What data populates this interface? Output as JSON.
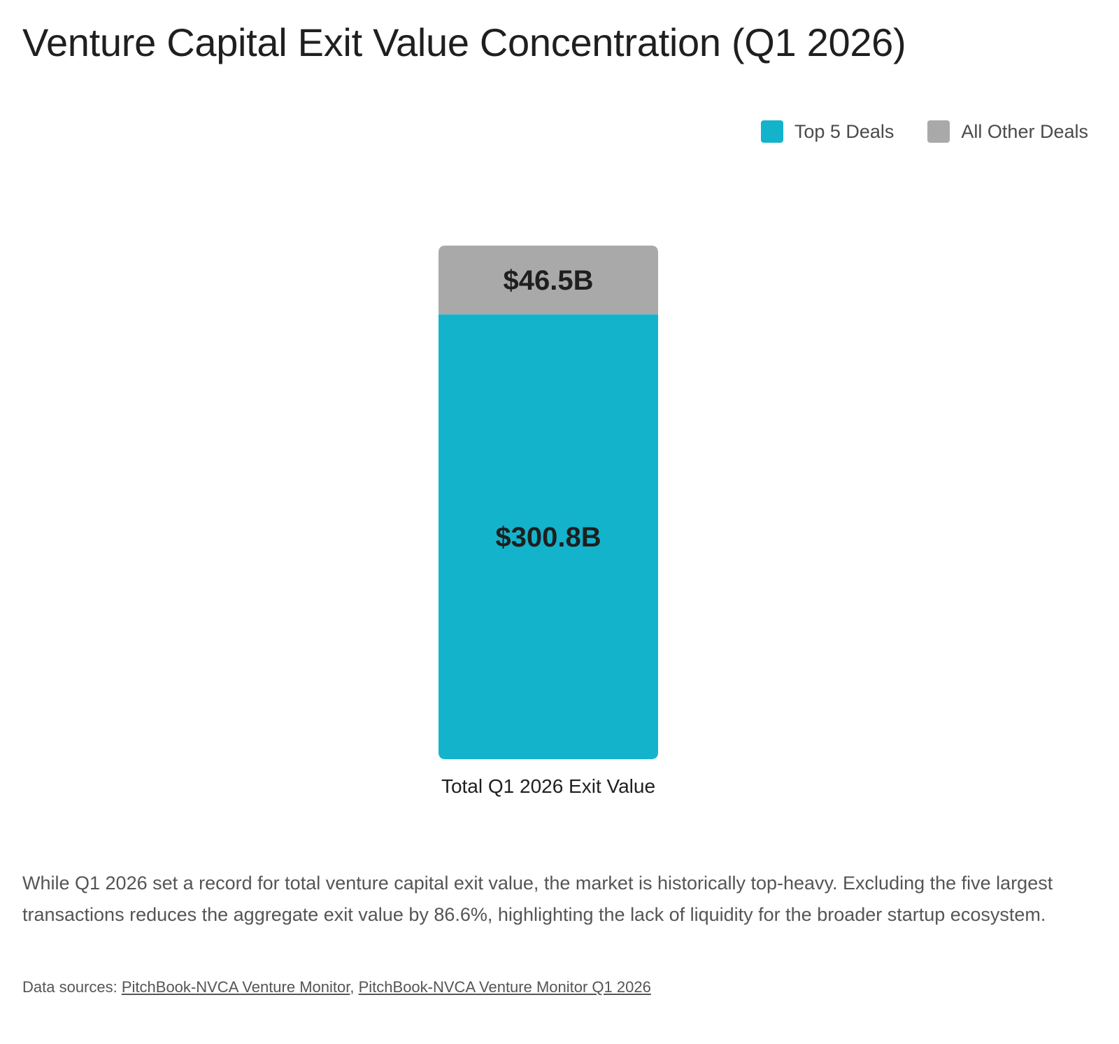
{
  "title": "Venture Capital Exit Value Concentration (Q1 2026)",
  "legend": [
    {
      "label": "Top 5 Deals",
      "color": "#14B3CC"
    },
    {
      "label": "All Other Deals",
      "color": "#A9A9A9"
    }
  ],
  "chart_data": {
    "type": "bar",
    "stacked": true,
    "categories": [
      "Total Q1 2026 Exit Value"
    ],
    "series": [
      {
        "name": "Top 5 Deals",
        "values": [
          300.8
        ],
        "labels": [
          "$300.8B"
        ],
        "color": "#14B3CC"
      },
      {
        "name": "All Other Deals",
        "values": [
          46.5
        ],
        "labels": [
          "$46.5B"
        ],
        "color": "#A9A9A9"
      }
    ],
    "unit": "$B",
    "ylim": [
      0,
      347.3
    ],
    "grid": false,
    "legend_position": "top-right"
  },
  "description": "While Q1 2026 set a record for total venture capital exit value, the market is historically top-heavy. Excluding the five largest transactions reduces the aggregate exit value by 86.6%, highlighting the lack of liquidity for the broader startup ecosystem.",
  "sources": {
    "prefix": "Data sources:",
    "separator": ",",
    "links": [
      "PitchBook-NVCA Venture Monitor",
      "PitchBook-NVCA Venture Monitor Q1 2026"
    ]
  }
}
